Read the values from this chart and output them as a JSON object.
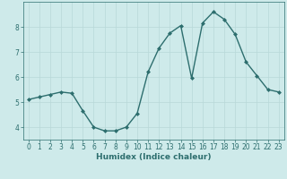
{
  "x": [
    0,
    1,
    2,
    3,
    4,
    5,
    6,
    7,
    8,
    9,
    10,
    11,
    12,
    13,
    14,
    15,
    16,
    17,
    18,
    19,
    20,
    21,
    22,
    23
  ],
  "y": [
    5.1,
    5.2,
    5.3,
    5.4,
    5.35,
    4.65,
    4.0,
    3.85,
    3.85,
    4.0,
    4.55,
    6.2,
    7.15,
    7.75,
    8.05,
    5.95,
    8.15,
    8.6,
    8.3,
    7.7,
    6.6,
    6.05,
    5.5,
    5.4
  ],
  "line_color": "#2d6e6e",
  "marker": "D",
  "marker_size": 2.0,
  "bg_color": "#ceeaea",
  "grid_color": "#b8d8d8",
  "axis_color": "#2d6e6e",
  "xlabel": "Humidex (Indice chaleur)",
  "xlim": [
    -0.5,
    23.5
  ],
  "ylim": [
    3.5,
    9.0
  ],
  "yticks": [
    4,
    5,
    6,
    7,
    8
  ],
  "xticks": [
    0,
    1,
    2,
    3,
    4,
    5,
    6,
    7,
    8,
    9,
    10,
    11,
    12,
    13,
    14,
    15,
    16,
    17,
    18,
    19,
    20,
    21,
    22,
    23
  ],
  "xlabel_fontsize": 6.5,
  "tick_fontsize": 5.5,
  "line_width": 1.0
}
